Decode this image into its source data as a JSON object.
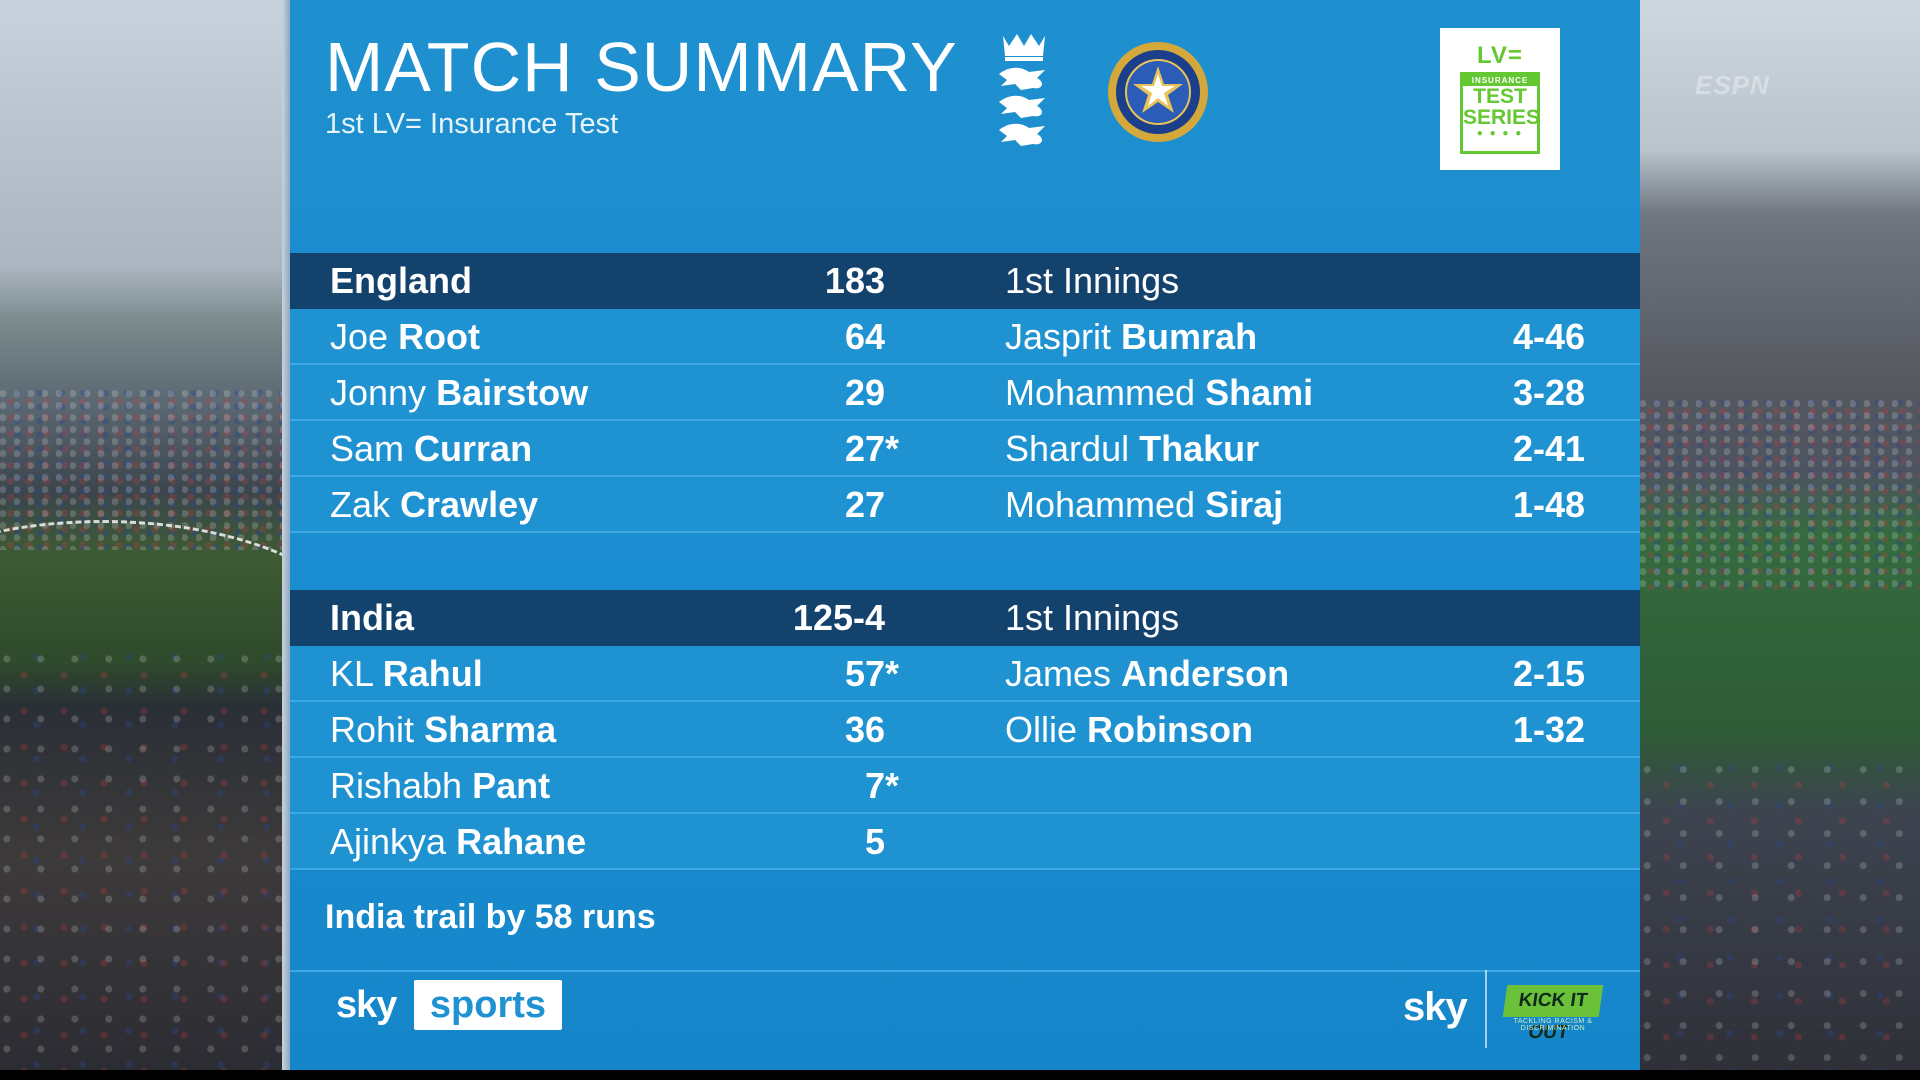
{
  "header": {
    "title": "MATCH SUMMARY",
    "subtitle": "1st LV= Insurance Test"
  },
  "badge": {
    "top": "LV=",
    "insurance": "INSURANCE",
    "line1": "TEST",
    "line2": "SERIES",
    "accent_color": "#64c832"
  },
  "england": {
    "team": "England",
    "score": "183",
    "innings": "1st Innings",
    "batters": [
      {
        "first": "Joe",
        "last": "Root",
        "runs": "64",
        "notout": ""
      },
      {
        "first": "Jonny",
        "last": "Bairstow",
        "runs": "29",
        "notout": ""
      },
      {
        "first": "Sam",
        "last": "Curran",
        "runs": "27",
        "notout": "*"
      },
      {
        "first": "Zak",
        "last": "Crawley",
        "runs": "27",
        "notout": ""
      }
    ],
    "bowlers": [
      {
        "first": "Jasprit",
        "last": "Bumrah",
        "figures": "4-46"
      },
      {
        "first": "Mohammed",
        "last": "Shami",
        "figures": "3-28"
      },
      {
        "first": "Shardul",
        "last": "Thakur",
        "figures": "2-41"
      },
      {
        "first": "Mohammed",
        "last": "Siraj",
        "figures": "1-48"
      }
    ]
  },
  "india": {
    "team": "India",
    "score": "125-4",
    "innings": "1st Innings",
    "batters": [
      {
        "first": "KL",
        "last": "Rahul",
        "runs": "57",
        "notout": "*"
      },
      {
        "first": "Rohit",
        "last": "Sharma",
        "runs": "36",
        "notout": ""
      },
      {
        "first": "Rishabh",
        "last": "Pant",
        "runs": "7",
        "notout": "*"
      },
      {
        "first": "Ajinkya",
        "last": "Rahane",
        "runs": "5",
        "notout": ""
      }
    ],
    "bowlers": [
      {
        "first": "James",
        "last": "Anderson",
        "figures": "2-15"
      },
      {
        "first": "Ollie",
        "last": "Robinson",
        "figures": "1-32"
      }
    ]
  },
  "status": "India trail by 58 runs",
  "footer": {
    "broadcaster_left_sky": "sky",
    "broadcaster_left_sports": "sports",
    "broadcaster_right": "sky",
    "campaign": "KICK IT OUT",
    "campaign_sub": "TACKLING RACISM & DISCRIMINATION"
  },
  "watermark": "ESPN",
  "colors": {
    "panel_blue": "#1f92d2",
    "header_navy": "#13426d",
    "row_divider": "#3fa8e2"
  }
}
